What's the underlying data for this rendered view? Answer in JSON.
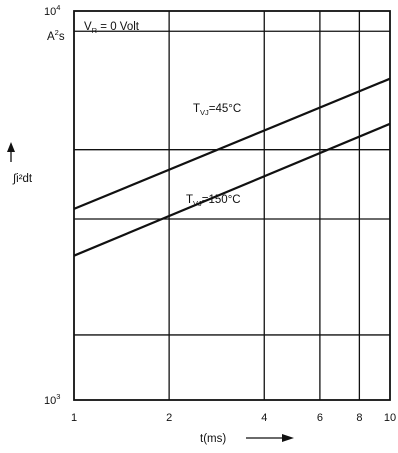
{
  "chart_data": {
    "type": "line",
    "x_scale": "log",
    "y_scale": "log",
    "xlim": [
      1,
      10
    ],
    "ylim": [
      1000,
      10000
    ],
    "x_ticks": [
      1,
      2,
      4,
      6,
      8,
      10
    ],
    "x_tick_labels": [
      "1",
      "2",
      "4",
      "6",
      "8",
      "10"
    ],
    "y_gridlines": [
      1470,
      2920,
      4400,
      8870
    ],
    "y_tick_labels": {
      "top": {
        "base": "10",
        "exp": "4"
      },
      "bottom": {
        "base": "10",
        "exp": "3"
      }
    },
    "y_unit": {
      "main": "A",
      "sup": "2",
      "tail": "s"
    },
    "ylabel": "∫i²dt",
    "xlabel": "t(ms)",
    "annotation": {
      "prefix": "V",
      "sub": "R",
      "rest": " = 0 Volt"
    },
    "series": [
      {
        "label_main": "T",
        "label_sub": "VJ",
        "label_rest": "=45°C",
        "x": [
          1,
          10
        ],
        "y": [
          3100,
          6700
        ]
      },
      {
        "label_main": "T",
        "label_sub": "VJ",
        "label_rest": "=150°C",
        "x": [
          1,
          10
        ],
        "y": [
          2350,
          5130
        ]
      }
    ],
    "grid": true
  }
}
